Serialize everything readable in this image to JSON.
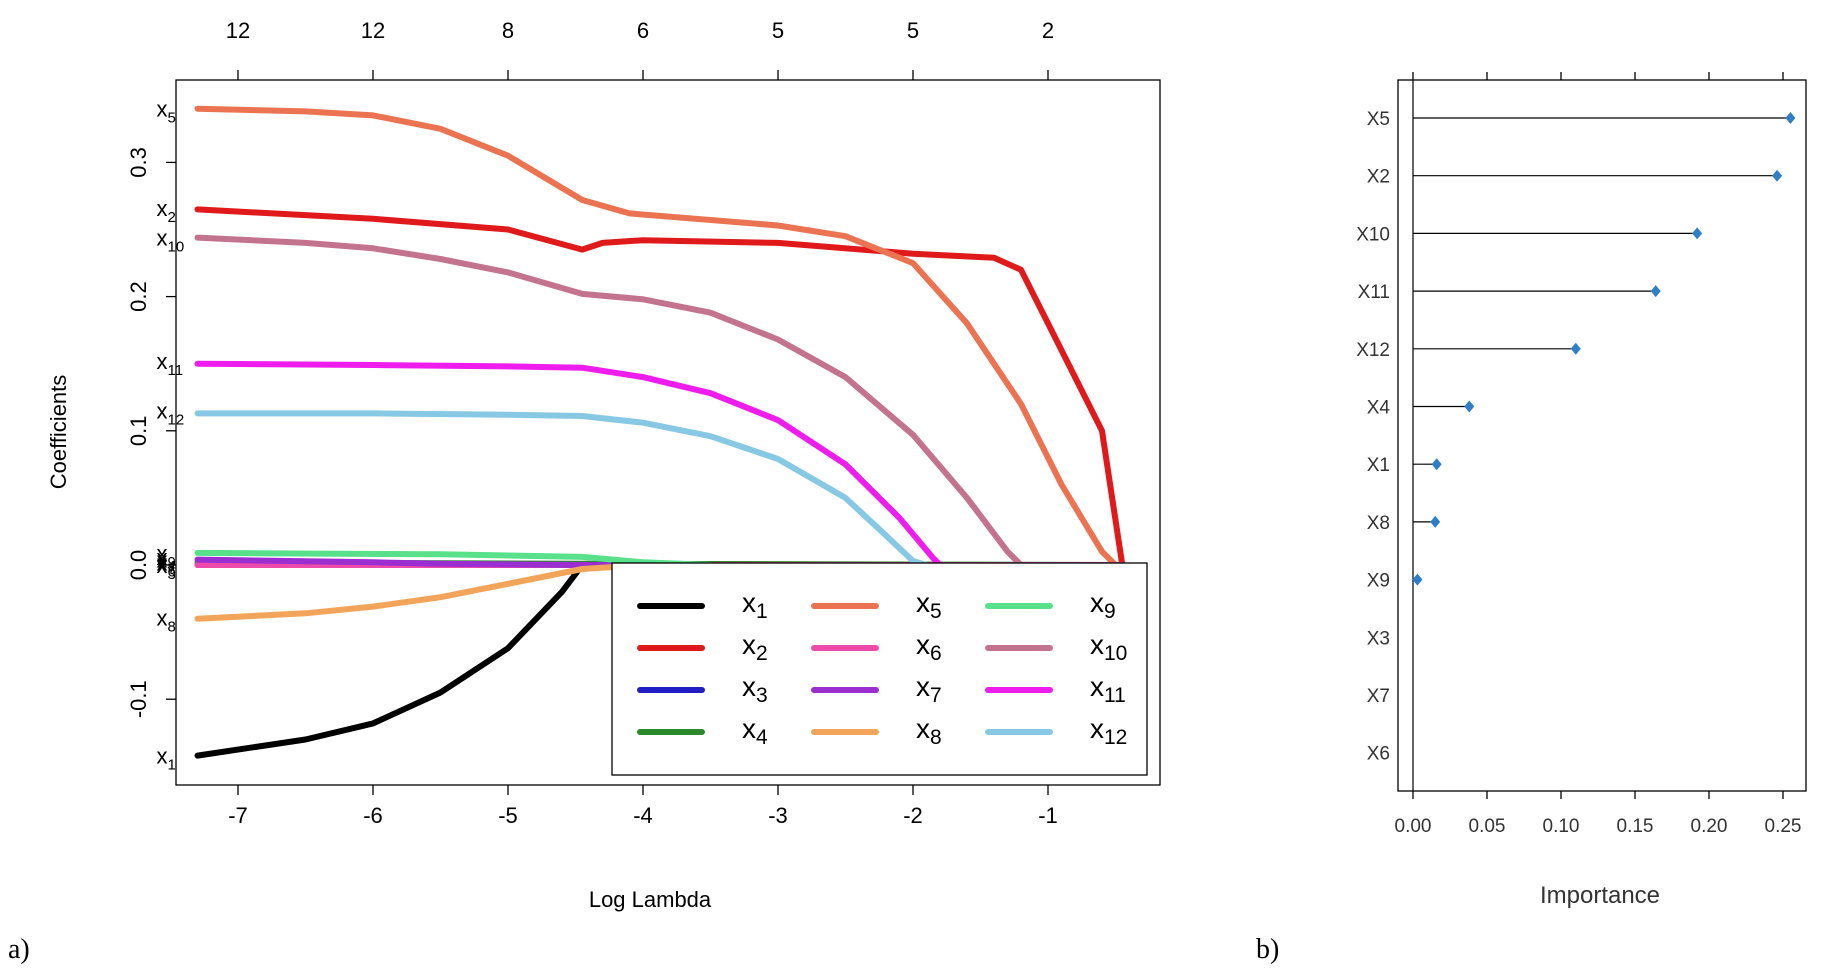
{
  "panels": {
    "a_label": "a)",
    "b_label": "b)"
  },
  "chart_data": [
    {
      "type": "line",
      "xlabel": "Log Lambda",
      "ylabel": "Coefficients",
      "xlim": [
        -7.5,
        -0.1
      ],
      "ylim": [
        -0.17,
        0.36
      ],
      "x_ticks": [
        -7,
        -6,
        -5,
        -4,
        -3,
        -2,
        -1
      ],
      "y_ticks": [
        -0.1,
        0.0,
        0.1,
        0.2,
        0.3
      ],
      "y_tick_labels": [
        "-0.1",
        "0.0",
        "0.1",
        "0.2",
        "0.3"
      ],
      "top_axis": {
        "positions": [
          -7,
          -6,
          -5,
          -4,
          -3,
          -2,
          -1
        ],
        "labels": [
          "12",
          "12",
          "8",
          "6",
          "5",
          "5",
          "2"
        ]
      },
      "legend_position": "bottom-right",
      "series": [
        {
          "name": "x1",
          "base": "x",
          "sub": "1",
          "color": "#000000",
          "x": [
            -7.3,
            -6.5,
            -6.0,
            -5.5,
            -5.0,
            -4.6,
            -4.45
          ],
          "y": [
            -0.142,
            -0.13,
            -0.118,
            -0.095,
            -0.062,
            -0.02,
            0.0
          ]
        },
        {
          "name": "x2",
          "base": "x",
          "sub": "2",
          "color": "#e0191b",
          "x": [
            -7.3,
            -6.0,
            -5.0,
            -4.45,
            -4.3,
            -4.0,
            -3.0,
            -2.0,
            -1.4,
            -1.2,
            -1.0,
            -0.6,
            -0.45
          ],
          "y": [
            0.265,
            0.258,
            0.25,
            0.235,
            0.24,
            0.242,
            0.24,
            0.232,
            0.229,
            0.22,
            0.18,
            0.1,
            0.0
          ]
        },
        {
          "name": "x3",
          "base": "x",
          "sub": "3",
          "color": "#1f1fc4",
          "x": [
            -7.3,
            -4.5,
            -0.45
          ],
          "y": [
            0.0,
            0.0,
            0.0
          ]
        },
        {
          "name": "x4",
          "base": "x",
          "sub": "4",
          "color": "#2a8a2a",
          "x": [
            -7.3,
            -4.5,
            -0.45
          ],
          "y": [
            0.002,
            0.001,
            0.0
          ]
        },
        {
          "name": "x5",
          "base": "x",
          "sub": "5",
          "color": "#ec7352",
          "x": [
            -7.3,
            -6.5,
            -6.0,
            -5.5,
            -5.0,
            -4.45,
            -4.1,
            -3.0,
            -2.5,
            -2.0,
            -1.6,
            -1.2,
            -0.9,
            -0.6,
            -0.5
          ],
          "y": [
            0.34,
            0.338,
            0.335,
            0.325,
            0.305,
            0.272,
            0.262,
            0.253,
            0.245,
            0.225,
            0.18,
            0.12,
            0.06,
            0.01,
            0.0
          ]
        },
        {
          "name": "x6",
          "base": "x",
          "sub": "6",
          "color": "#ee4aab",
          "x": [
            -7.3,
            -0.45
          ],
          "y": [
            0.0,
            0.0
          ]
        },
        {
          "name": "x7",
          "base": "x",
          "sub": "7",
          "color": "#9a2ed0",
          "x": [
            -7.3,
            -6.0,
            -5.5,
            -4.45,
            -4.0
          ],
          "y": [
            0.004,
            0.002,
            0.001,
            0.0,
            0.0
          ]
        },
        {
          "name": "x8",
          "base": "x",
          "sub": "8",
          "color": "#f2a55a",
          "x": [
            -7.3,
            -6.5,
            -6.0,
            -5.5,
            -5.0,
            -4.45,
            -4.0
          ],
          "y": [
            -0.04,
            -0.036,
            -0.031,
            -0.024,
            -0.014,
            -0.003,
            0.0
          ]
        },
        {
          "name": "x9",
          "base": "x",
          "sub": "9",
          "color": "#58e08b",
          "x": [
            -7.3,
            -5.5,
            -4.45,
            -4.0,
            -3.5
          ],
          "y": [
            0.009,
            0.008,
            0.006,
            0.002,
            0.0
          ]
        },
        {
          "name": "x10",
          "base": "x",
          "sub": "10",
          "color": "#c4738f",
          "x": [
            -7.3,
            -6.5,
            -6.0,
            -5.5,
            -5.0,
            -4.45,
            -4.0,
            -3.5,
            -3.0,
            -2.5,
            -2.0,
            -1.6,
            -1.3,
            -1.2
          ],
          "y": [
            0.244,
            0.24,
            0.236,
            0.228,
            0.218,
            0.202,
            0.198,
            0.188,
            0.168,
            0.14,
            0.097,
            0.05,
            0.01,
            0.0
          ]
        },
        {
          "name": "x11",
          "base": "x",
          "sub": "11",
          "color": "#ee1ded",
          "x": [
            -7.3,
            -6.0,
            -5.0,
            -4.45,
            -4.0,
            -3.5,
            -3.0,
            -2.5,
            -2.1,
            -1.85,
            -1.8
          ],
          "y": [
            0.15,
            0.149,
            0.148,
            0.147,
            0.14,
            0.128,
            0.108,
            0.075,
            0.035,
            0.005,
            0.0
          ]
        },
        {
          "name": "x12",
          "base": "x",
          "sub": "12",
          "color": "#87c8e4",
          "x": [
            -7.3,
            -6.0,
            -5.0,
            -4.45,
            -4.0,
            -3.5,
            -3.0,
            -2.5,
            -2.2,
            -2.0,
            -1.9
          ],
          "y": [
            0.113,
            0.113,
            0.112,
            0.111,
            0.106,
            0.096,
            0.079,
            0.05,
            0.022,
            0.003,
            0.0
          ]
        }
      ],
      "line_labels": [
        {
          "base": "x",
          "sub": "5",
          "x": -7.3,
          "y": 0.34
        },
        {
          "base": "x",
          "sub": "2",
          "x": -7.3,
          "y": 0.266
        },
        {
          "base": "x",
          "sub": "10",
          "x": -7.3,
          "y": 0.244
        },
        {
          "base": "x",
          "sub": "11",
          "x": -7.3,
          "y": 0.152
        },
        {
          "base": "x",
          "sub": "12",
          "x": -7.3,
          "y": 0.115
        },
        {
          "base": "x",
          "sub": "9",
          "x": -7.3,
          "y": 0.009
        },
        {
          "base": "x",
          "sub": "4",
          "x": -7.3,
          "y": 0.006
        },
        {
          "base": "x",
          "sub": "7",
          "x": -7.3,
          "y": 0.004
        },
        {
          "base": "x",
          "sub": "6",
          "x": -7.3,
          "y": 0.002
        },
        {
          "base": "x",
          "sub": "3",
          "x": -7.3,
          "y": 0.0
        },
        {
          "base": "x",
          "sub": "8",
          "x": -7.3,
          "y": -0.039
        },
        {
          "base": "x",
          "sub": "1",
          "x": -7.3,
          "y": -0.142
        }
      ]
    },
    {
      "type": "dot",
      "xlabel": "Importance",
      "xlim": [
        -0.005,
        0.26
      ],
      "x_ticks": [
        0.0,
        0.05,
        0.1,
        0.15,
        0.2,
        0.25
      ],
      "x_tick_labels": [
        "0.00",
        "0.05",
        "0.10",
        "0.15",
        "0.20",
        "0.25"
      ],
      "point_color": "#2f7fc8",
      "categories": [
        "X5",
        "X2",
        "X10",
        "X11",
        "X12",
        "X4",
        "X1",
        "X8",
        "X9",
        "X3",
        "X7",
        "X6"
      ],
      "values": [
        0.255,
        0.246,
        0.192,
        0.164,
        0.11,
        0.038,
        0.016,
        0.015,
        0.003,
        0.0,
        0.0,
        0.0
      ],
      "shown": [
        true,
        true,
        true,
        true,
        true,
        true,
        true,
        true,
        true,
        false,
        false,
        false
      ]
    }
  ]
}
